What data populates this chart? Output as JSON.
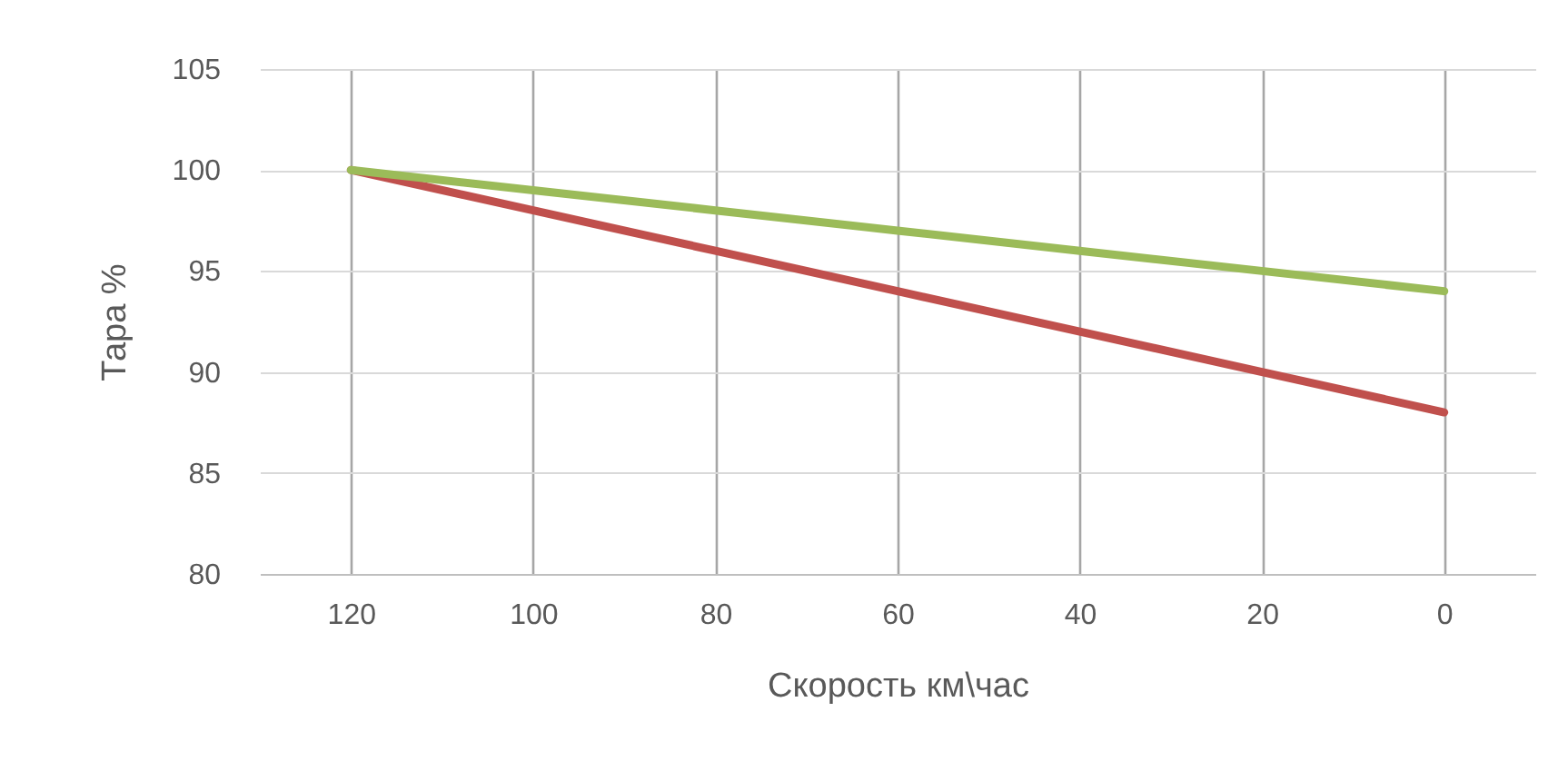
{
  "chart_data": {
    "type": "line",
    "xlabel": "Скорость км\\час",
    "ylabel": "Тара %",
    "categories": [
      "120",
      "100",
      "80",
      "60",
      "40",
      "20",
      "0"
    ],
    "series": [
      {
        "color": "#c0504d",
        "values": [
          100,
          98,
          96,
          94,
          92,
          90,
          88
        ]
      },
      {
        "color": "#9bbb59",
        "values": [
          100,
          99,
          98,
          97,
          96,
          95,
          94
        ]
      }
    ],
    "ylim": [
      80,
      105
    ],
    "yticks": [
      80,
      85,
      90,
      95,
      100,
      105
    ],
    "grid": true,
    "marker": "none",
    "line_style": "solid"
  }
}
